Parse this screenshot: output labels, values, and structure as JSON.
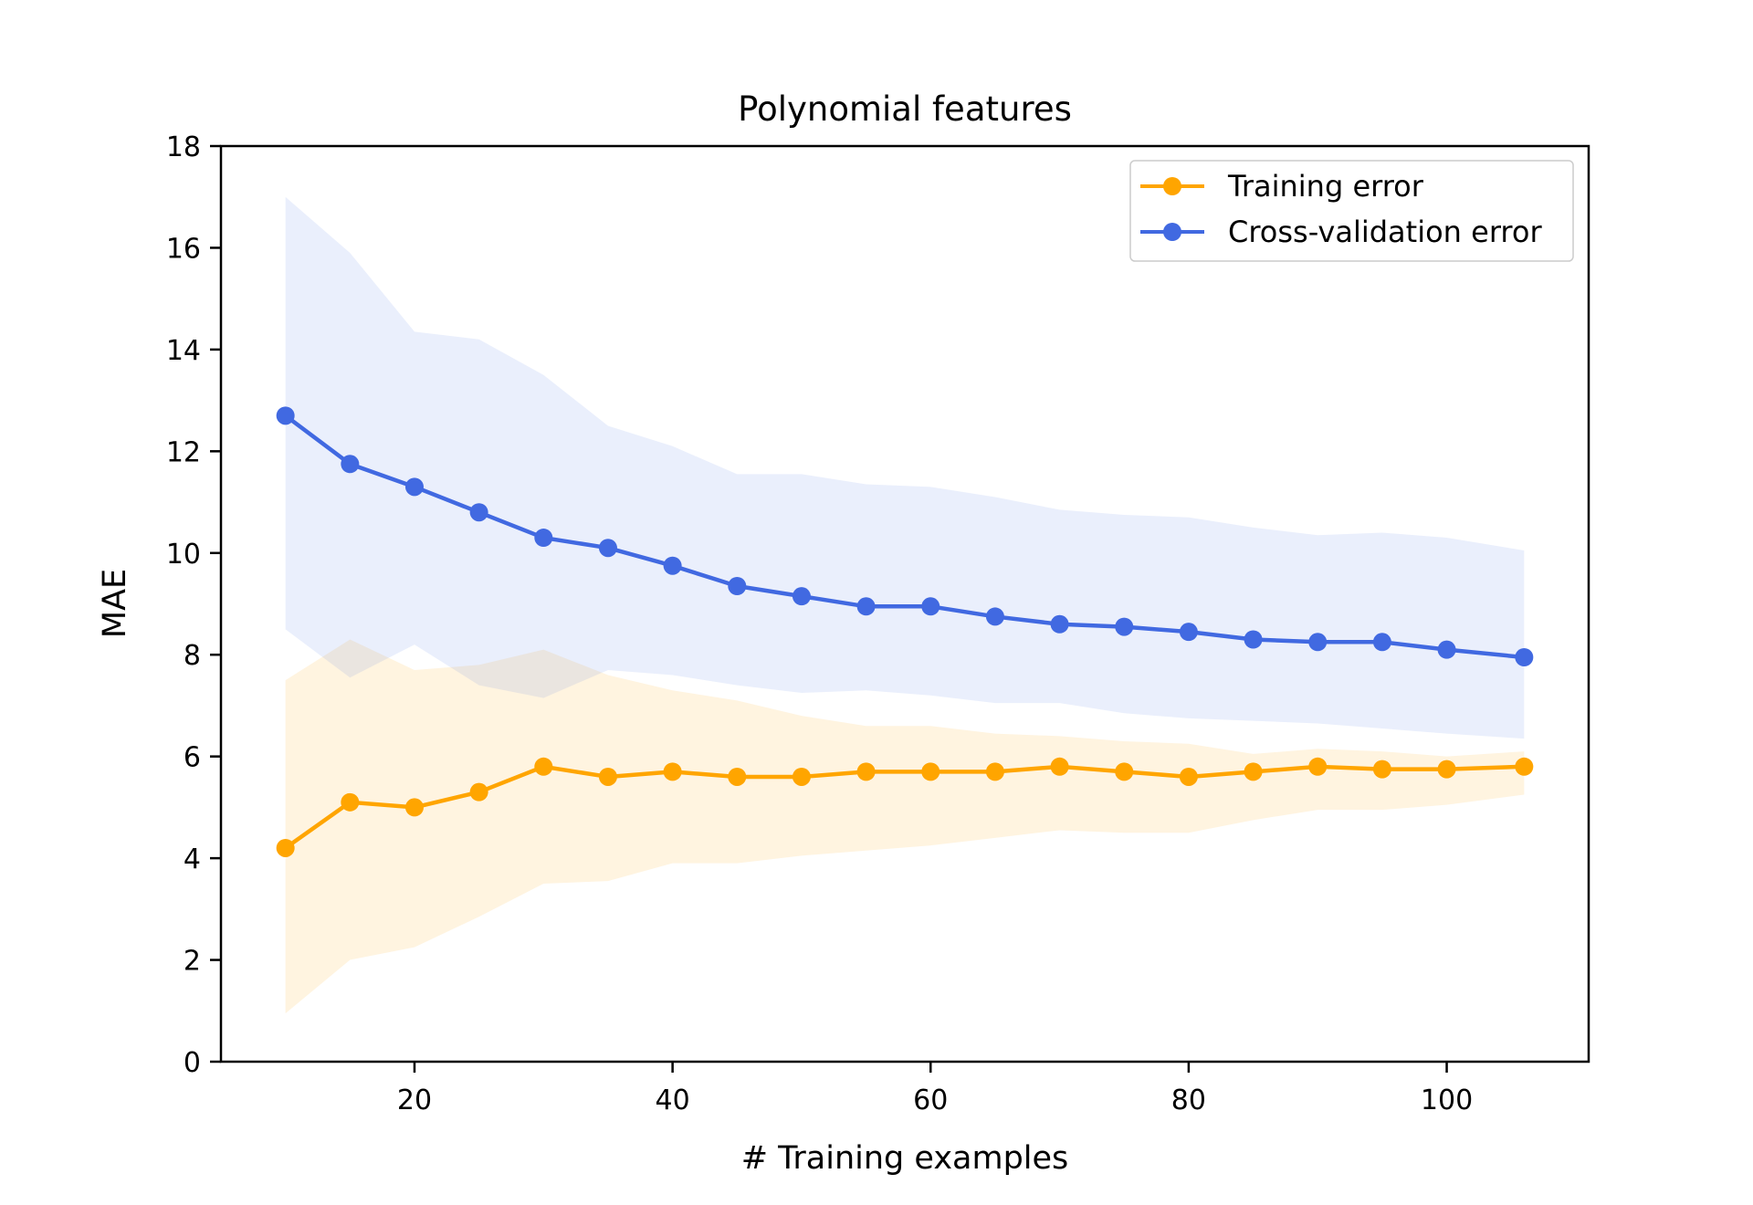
{
  "chart_data": {
    "type": "line",
    "title": "Polynomial features",
    "xlabel": "# Training examples",
    "ylabel": "MAE",
    "xlim": [
      5,
      111
    ],
    "ylim": [
      0,
      18
    ],
    "xticks": [
      20,
      40,
      60,
      80,
      100
    ],
    "yticks": [
      0,
      2,
      4,
      6,
      8,
      10,
      12,
      14,
      16,
      18
    ],
    "grid": false,
    "legend_position": "top-right",
    "x": [
      10,
      15,
      20,
      25,
      30,
      35,
      40,
      45,
      50,
      55,
      60,
      65,
      70,
      75,
      80,
      85,
      90,
      95,
      100,
      106
    ],
    "series": [
      {
        "name": "Training error",
        "color": "#FFA500",
        "values": [
          4.2,
          5.1,
          5.0,
          5.3,
          5.8,
          5.6,
          5.7,
          5.6,
          5.6,
          5.7,
          5.7,
          5.7,
          5.8,
          5.7,
          5.6,
          5.7,
          5.8,
          5.75,
          5.75,
          5.8
        ],
        "band_upper": [
          7.5,
          8.3,
          7.7,
          7.8,
          8.1,
          7.6,
          7.3,
          7.1,
          6.8,
          6.6,
          6.6,
          6.45,
          6.4,
          6.3,
          6.25,
          6.05,
          6.15,
          6.1,
          6.0,
          6.1
        ],
        "band_lower": [
          0.95,
          2.0,
          2.25,
          2.85,
          3.5,
          3.55,
          3.9,
          3.9,
          4.05,
          4.15,
          4.25,
          4.4,
          4.55,
          4.5,
          4.5,
          4.75,
          4.95,
          4.95,
          5.05,
          5.25
        ]
      },
      {
        "name": "Cross-validation error",
        "color": "#4169E1",
        "values": [
          12.7,
          11.75,
          11.3,
          10.8,
          10.3,
          10.1,
          9.75,
          9.35,
          9.15,
          8.95,
          8.95,
          8.75,
          8.6,
          8.55,
          8.45,
          8.3,
          8.25,
          8.25,
          8.1,
          7.95
        ],
        "band_upper": [
          17.0,
          15.9,
          14.35,
          14.2,
          13.5,
          12.5,
          12.1,
          11.55,
          11.55,
          11.35,
          11.3,
          11.1,
          10.85,
          10.75,
          10.7,
          10.5,
          10.35,
          10.4,
          10.3,
          10.05
        ],
        "band_lower": [
          8.5,
          7.55,
          8.2,
          7.4,
          7.15,
          7.7,
          7.6,
          7.4,
          7.25,
          7.3,
          7.2,
          7.05,
          7.05,
          6.85,
          6.75,
          6.7,
          6.65,
          6.55,
          6.45,
          6.35
        ]
      }
    ]
  }
}
